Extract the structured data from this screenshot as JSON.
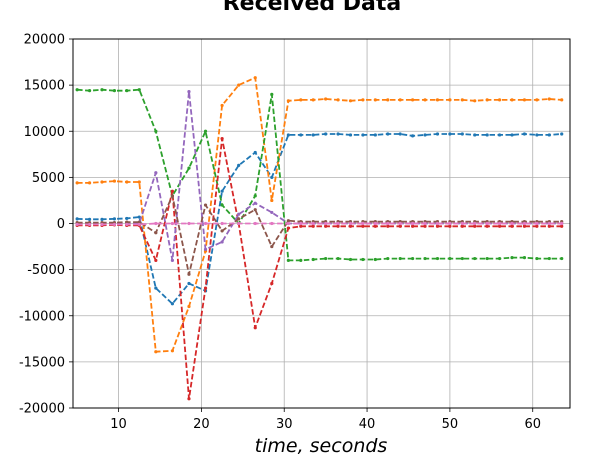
{
  "chart_data": {
    "type": "line",
    "title": "Received Data",
    "xlabel": "time, seconds",
    "ylabel": "",
    "xlim": [
      4.5,
      64.5
    ],
    "ylim": [
      -20000,
      20000
    ],
    "xticks": [
      10,
      20,
      30,
      40,
      50,
      60
    ],
    "yticks": [
      -20000,
      -15000,
      -10000,
      -5000,
      0,
      5000,
      10000,
      15000,
      20000
    ],
    "grid": true,
    "legend": "none",
    "x": [
      5,
      6.5,
      8,
      9.5,
      11,
      12.5,
      14.5,
      16.5,
      18.5,
      20.5,
      22.5,
      24.5,
      26.5,
      28.5,
      30.5,
      32,
      33.5,
      35,
      36.5,
      38,
      39.5,
      41,
      42.5,
      44,
      45.5,
      47,
      48.5,
      50,
      51.5,
      53,
      54.5,
      56,
      57.5,
      59,
      60.5,
      62,
      63.5
    ],
    "series": [
      {
        "color": "#1f77b4",
        "values": [
          500,
          450,
          450,
          500,
          550,
          700,
          -7000,
          -8700,
          -6500,
          -7300,
          3500,
          6300,
          7700,
          5000,
          9600,
          9600,
          9600,
          9700,
          9700,
          9600,
          9600,
          9600,
          9700,
          9700,
          9500,
          9600,
          9700,
          9700,
          9700,
          9600,
          9600,
          9600,
          9600,
          9700,
          9600,
          9600,
          9700
        ]
      },
      {
        "color": "#ff7f0e",
        "values": [
          4400,
          4400,
          4500,
          4600,
          4500,
          4500,
          -13900,
          -13800,
          -9000,
          -3000,
          12800,
          15000,
          15800,
          2500,
          13300,
          13400,
          13400,
          13500,
          13400,
          13300,
          13400,
          13400,
          13400,
          13400,
          13400,
          13400,
          13400,
          13400,
          13400,
          13300,
          13400,
          13400,
          13400,
          13400,
          13400,
          13500,
          13400
        ]
      },
      {
        "color": "#2ca02c",
        "values": [
          14500,
          14400,
          14500,
          14400,
          14400,
          14500,
          10000,
          3000,
          6000,
          10000,
          2000,
          0,
          3000,
          14000,
          -4000,
          -4000,
          -3900,
          -3800,
          -3800,
          -3900,
          -3900,
          -3900,
          -3800,
          -3800,
          -3800,
          -3800,
          -3800,
          -3800,
          -3800,
          -3800,
          -3800,
          -3800,
          -3700,
          -3700,
          -3800,
          -3800,
          -3800
        ]
      },
      {
        "color": "#d62728",
        "values": [
          -200,
          -200,
          -200,
          -150,
          -200,
          -200,
          -4000,
          3500,
          -19000,
          -7000,
          9200,
          0,
          -11300,
          -6500,
          -500,
          -300,
          -300,
          -300,
          -300,
          -300,
          -300,
          -300,
          -300,
          -300,
          -300,
          -300,
          -300,
          -300,
          -300,
          -300,
          -300,
          -300,
          -300,
          -300,
          -300,
          -300,
          -300
        ]
      },
      {
        "color": "#9467bd",
        "values": [
          0,
          0,
          50,
          50,
          0,
          0,
          5500,
          -4000,
          14300,
          -2800,
          -2000,
          1000,
          2200,
          1200,
          0,
          0,
          0,
          0,
          0,
          0,
          0,
          0,
          0,
          0,
          0,
          0,
          0,
          0,
          0,
          0,
          0,
          0,
          0,
          0,
          0,
          0,
          0
        ]
      },
      {
        "color": "#8c564b",
        "values": [
          100,
          100,
          100,
          100,
          150,
          150,
          -1000,
          3000,
          -5500,
          2000,
          -800,
          500,
          1500,
          -2500,
          300,
          200,
          200,
          200,
          200,
          200,
          200,
          200,
          200,
          200,
          200,
          200,
          200,
          200,
          200,
          200,
          200,
          200,
          200,
          200,
          200,
          200,
          200
        ]
      },
      {
        "color": "#e377c2",
        "values": [
          -100,
          -100,
          -100,
          -100,
          -100,
          -100,
          0,
          0,
          0,
          0,
          0,
          0,
          0,
          0,
          0,
          0,
          0,
          0,
          0,
          0,
          0,
          0,
          0,
          0,
          0,
          0,
          0,
          0,
          0,
          0,
          0,
          0,
          0,
          0,
          0,
          0,
          0
        ]
      }
    ]
  }
}
